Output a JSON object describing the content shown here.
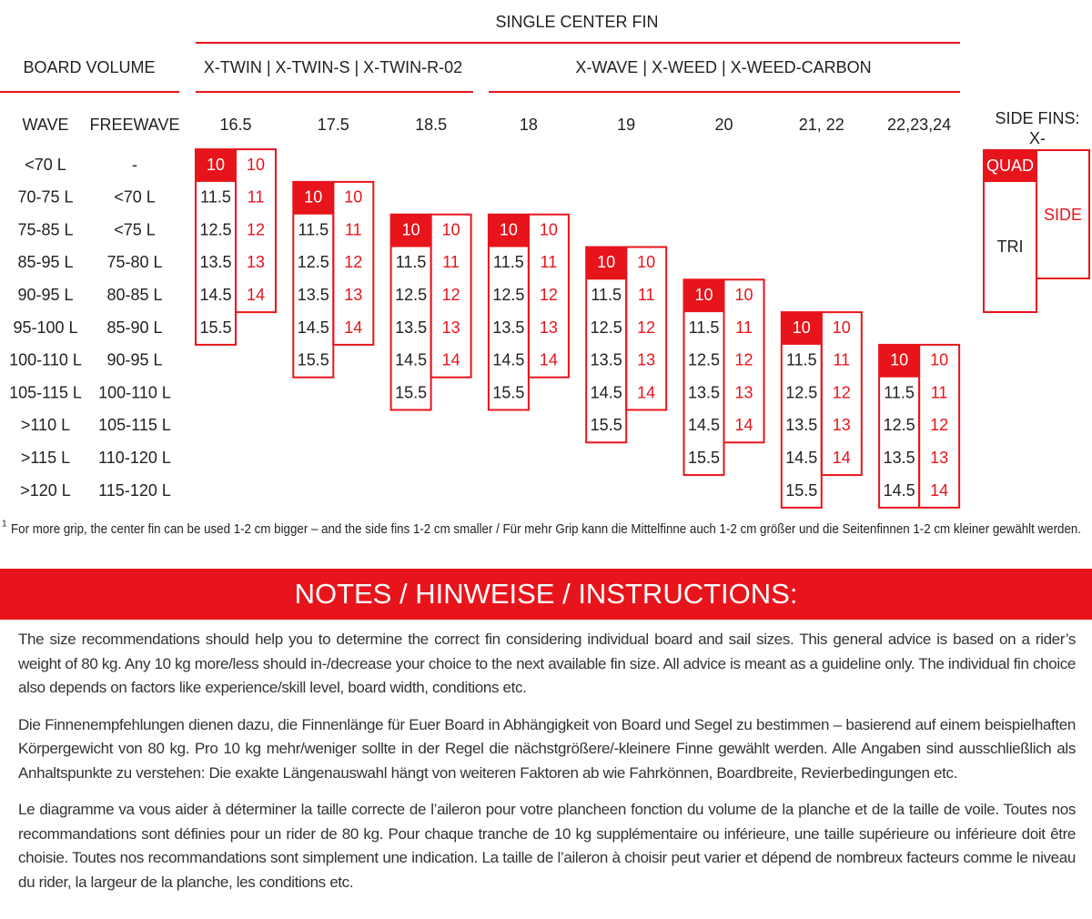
{
  "header": {
    "title": "SINGLE CENTER FIN",
    "board_volume": "BOARD VOLUME",
    "groups": [
      "X-TWIN | X-TWIN-S | X-TWIN-R-02",
      "X-WAVE | X-WEED | X-WEED-CARBON"
    ]
  },
  "columns": {
    "wave": "WAVE",
    "freewave": "FREEWAVE",
    "fin_sizes": [
      16.5,
      17.5,
      18.5,
      18,
      19,
      20,
      "21, 22",
      "22,23,24"
    ]
  },
  "volumes": [
    {
      "wave": "<70 L",
      "freewave": "-"
    },
    {
      "wave": "70-75 L",
      "freewave": "<70 L"
    },
    {
      "wave": "75-85 L",
      "freewave": "<75 L"
    },
    {
      "wave": "85-95 L",
      "freewave": "75-80 L"
    },
    {
      "wave": "90-95 L",
      "freewave": "80-85 L"
    },
    {
      "wave": "95-100 L",
      "freewave": "85-90 L"
    },
    {
      "wave": "100-110 L",
      "freewave": "90-95 L"
    },
    {
      "wave": "105-115 L",
      "freewave": "100-110 L"
    },
    {
      "wave": ">110 L",
      "freewave": "105-115 L"
    },
    {
      "wave": ">115 L",
      "freewave": "110-120 L"
    },
    {
      "wave": ">120 L",
      "freewave": "115-120 L"
    }
  ],
  "fin_columns": [
    {
      "center": [
        10,
        11.5,
        12.5,
        13.5,
        14.5,
        15.5,
        null,
        null,
        null,
        null,
        null
      ],
      "side": [
        10,
        11,
        12,
        13,
        14,
        null,
        null,
        null,
        null,
        null,
        null
      ]
    },
    {
      "center": [
        null,
        10,
        11.5,
        12.5,
        13.5,
        14.5,
        15.5,
        null,
        null,
        null,
        null
      ],
      "side": [
        null,
        10,
        11,
        12,
        13,
        14,
        null,
        null,
        null,
        null,
        null
      ]
    },
    {
      "center": [
        null,
        null,
        10,
        11.5,
        12.5,
        13.5,
        14.5,
        15.5,
        null,
        null,
        null
      ],
      "side": [
        null,
        null,
        10,
        11,
        12,
        13,
        14,
        null,
        null,
        null,
        null
      ]
    },
    {
      "center": [
        null,
        null,
        10,
        11.5,
        12.5,
        13.5,
        14.5,
        15.5,
        null,
        null,
        null
      ],
      "side": [
        null,
        null,
        10,
        11,
        12,
        13,
        14,
        null,
        null,
        null,
        null
      ]
    },
    {
      "center": [
        null,
        null,
        null,
        10,
        11.5,
        12.5,
        13.5,
        14.5,
        15.5,
        null,
        null
      ],
      "side": [
        null,
        null,
        null,
        10,
        11,
        12,
        13,
        14,
        null,
        null,
        null
      ]
    },
    {
      "center": [
        null,
        null,
        null,
        null,
        10,
        11.5,
        12.5,
        13.5,
        14.5,
        15.5,
        null
      ],
      "side": [
        null,
        null,
        null,
        null,
        10,
        11,
        12,
        13,
        14,
        null,
        null
      ]
    },
    {
      "center": [
        null,
        null,
        null,
        null,
        null,
        10,
        11.5,
        12.5,
        13.5,
        14.5,
        15.5
      ],
      "side": [
        null,
        null,
        null,
        null,
        null,
        10,
        11,
        12,
        13,
        14,
        null
      ]
    },
    {
      "center": [
        null,
        null,
        null,
        null,
        null,
        null,
        10,
        11.5,
        12.5,
        13.5,
        14.5
      ],
      "side": [
        null,
        null,
        null,
        null,
        null,
        null,
        10,
        11,
        12,
        13,
        14
      ]
    }
  ],
  "side_fins": {
    "title": "SIDE FINS:",
    "subtitle": "X-",
    "quad": "QUAD",
    "tri": "TRI",
    "side": "SIDE"
  },
  "footnote": {
    "marker": "1",
    "text": "For more grip, the center fin can be used 1-2 cm bigger – and the side fins 1-2 cm smaller / Für mehr Grip kann die Mittelfinne auch 1-2 cm größer und die Seitenfinnen 1-2 cm kleiner gewählt werden."
  },
  "notes": {
    "title": "NOTES / HINWEISE / INSTRUCTIONS:",
    "paragraphs": [
      "The size recommendations should help you to determine the correct fin considering individual board and sail sizes. This general advice is based on a rider’s weight of 80 kg. Any 10 kg more/less should in-/decrease your choice to the next available fin size. All advice is meant as a guideline only. The individual fin choice also depends on factors like experience/skill level, board width, conditions etc.",
      "Die Finnenempfehlungen dienen dazu, die Finnenlänge für Euer Board in Abhängigkeit von Board und Segel zu bestimmen – basierend auf einem beispielhaften Körpergewicht von 80 kg. Pro 10 kg mehr/weniger sollte in der Regel die nächstgrößere/-kleinere Finne gewählt werden. Alle Angaben sind ausschließlich als Anhaltspunkte zu verstehen: Die exakte Längenauswahl hängt von weiteren Faktoren ab wie Fahrkönnen, Boardbreite, Revierbedingungen etc.",
      "Le diagramme va vous aider à déterminer la taille correcte de l’aileron pour votre plancheen fonction du volume de la planche et de la taille de voile. Toutes nos recommandations sont définies pour un rider de 80 kg. Pour chaque tranche de 10 kg supplémentaire ou inférieure, une taille supérieure ou inférieure doit être choisie. Toutes nos recommandations sont simplement une indication. La taille de l’aileron à choisir peut varier et dépend de nombreux facteurs comme le niveau du rider, la largeur de la planche, les conditions etc."
    ]
  }
}
